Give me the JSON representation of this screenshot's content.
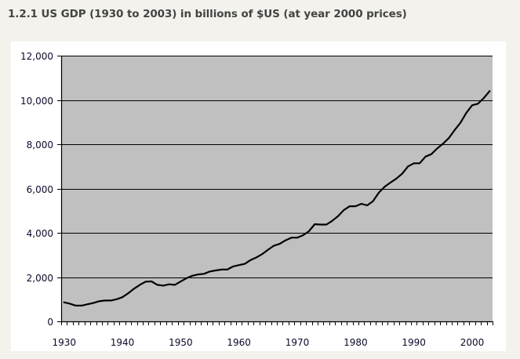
{
  "page": {
    "title": "1.2.1 US GDP (1930 to 2003) in billions of $US (at year 2000 prices)"
  },
  "colors": {
    "page_background": "#f3f2ec",
    "plot_background": "#c0c0c0",
    "line": "#000000",
    "gridline": "#000000",
    "card": "#ffffff"
  },
  "chart_data": {
    "type": "line",
    "title": "1.2.1 US GDP (1930 to 2003) in billions of $US (at year 2000 prices)",
    "xlabel": "",
    "ylabel": "",
    "ylim": [
      0,
      12000
    ],
    "xlim": [
      1930,
      2003
    ],
    "grid": true,
    "legend": "none",
    "y_ticks": [
      0,
      2000,
      4000,
      6000,
      8000,
      10000,
      12000
    ],
    "y_tick_labels": [
      "0",
      "2,000",
      "4,000",
      "6,000",
      "8,000",
      "10,000",
      "12,000"
    ],
    "x_tick_labels": [
      "1930",
      "1940",
      "1950",
      "1960",
      "1970",
      "1980",
      "1990",
      "2000"
    ],
    "series": [
      {
        "name": "US GDP (billions, 2000 $)",
        "x": [
          1930,
          1931,
          1932,
          1933,
          1934,
          1935,
          1936,
          1937,
          1938,
          1939,
          1940,
          1941,
          1942,
          1943,
          1944,
          1945,
          1946,
          1947,
          1948,
          1949,
          1950,
          1951,
          1952,
          1953,
          1954,
          1955,
          1956,
          1957,
          1958,
          1959,
          1960,
          1961,
          1962,
          1963,
          1964,
          1965,
          1966,
          1967,
          1968,
          1969,
          1970,
          1971,
          1972,
          1973,
          1974,
          1975,
          1976,
          1977,
          1978,
          1979,
          1980,
          1981,
          1982,
          1983,
          1984,
          1985,
          1986,
          1987,
          1988,
          1989,
          1990,
          1991,
          1992,
          1993,
          1994,
          1995,
          1996,
          1997,
          1998,
          1999,
          2000,
          2001,
          2002,
          2003
        ],
        "values": [
          860,
          800,
          710,
          710,
          770,
          830,
          910,
          940,
          940,
          1000,
          1090,
          1270,
          1475,
          1650,
          1795,
          1805,
          1650,
          1615,
          1675,
          1650,
          1800,
          1950,
          2060,
          2120,
          2150,
          2250,
          2300,
          2340,
          2340,
          2480,
          2540,
          2600,
          2770,
          2890,
          3040,
          3240,
          3420,
          3500,
          3660,
          3780,
          3780,
          3890,
          4070,
          4390,
          4370,
          4370,
          4540,
          4750,
          5030,
          5200,
          5200,
          5310,
          5240,
          5430,
          5820,
          6080,
          6270,
          6450,
          6670,
          7000,
          7140,
          7140,
          7440,
          7550,
          7810,
          8020,
          8280,
          8640,
          8970,
          9420,
          9760,
          9830,
          10090,
          10400
        ]
      }
    ]
  }
}
